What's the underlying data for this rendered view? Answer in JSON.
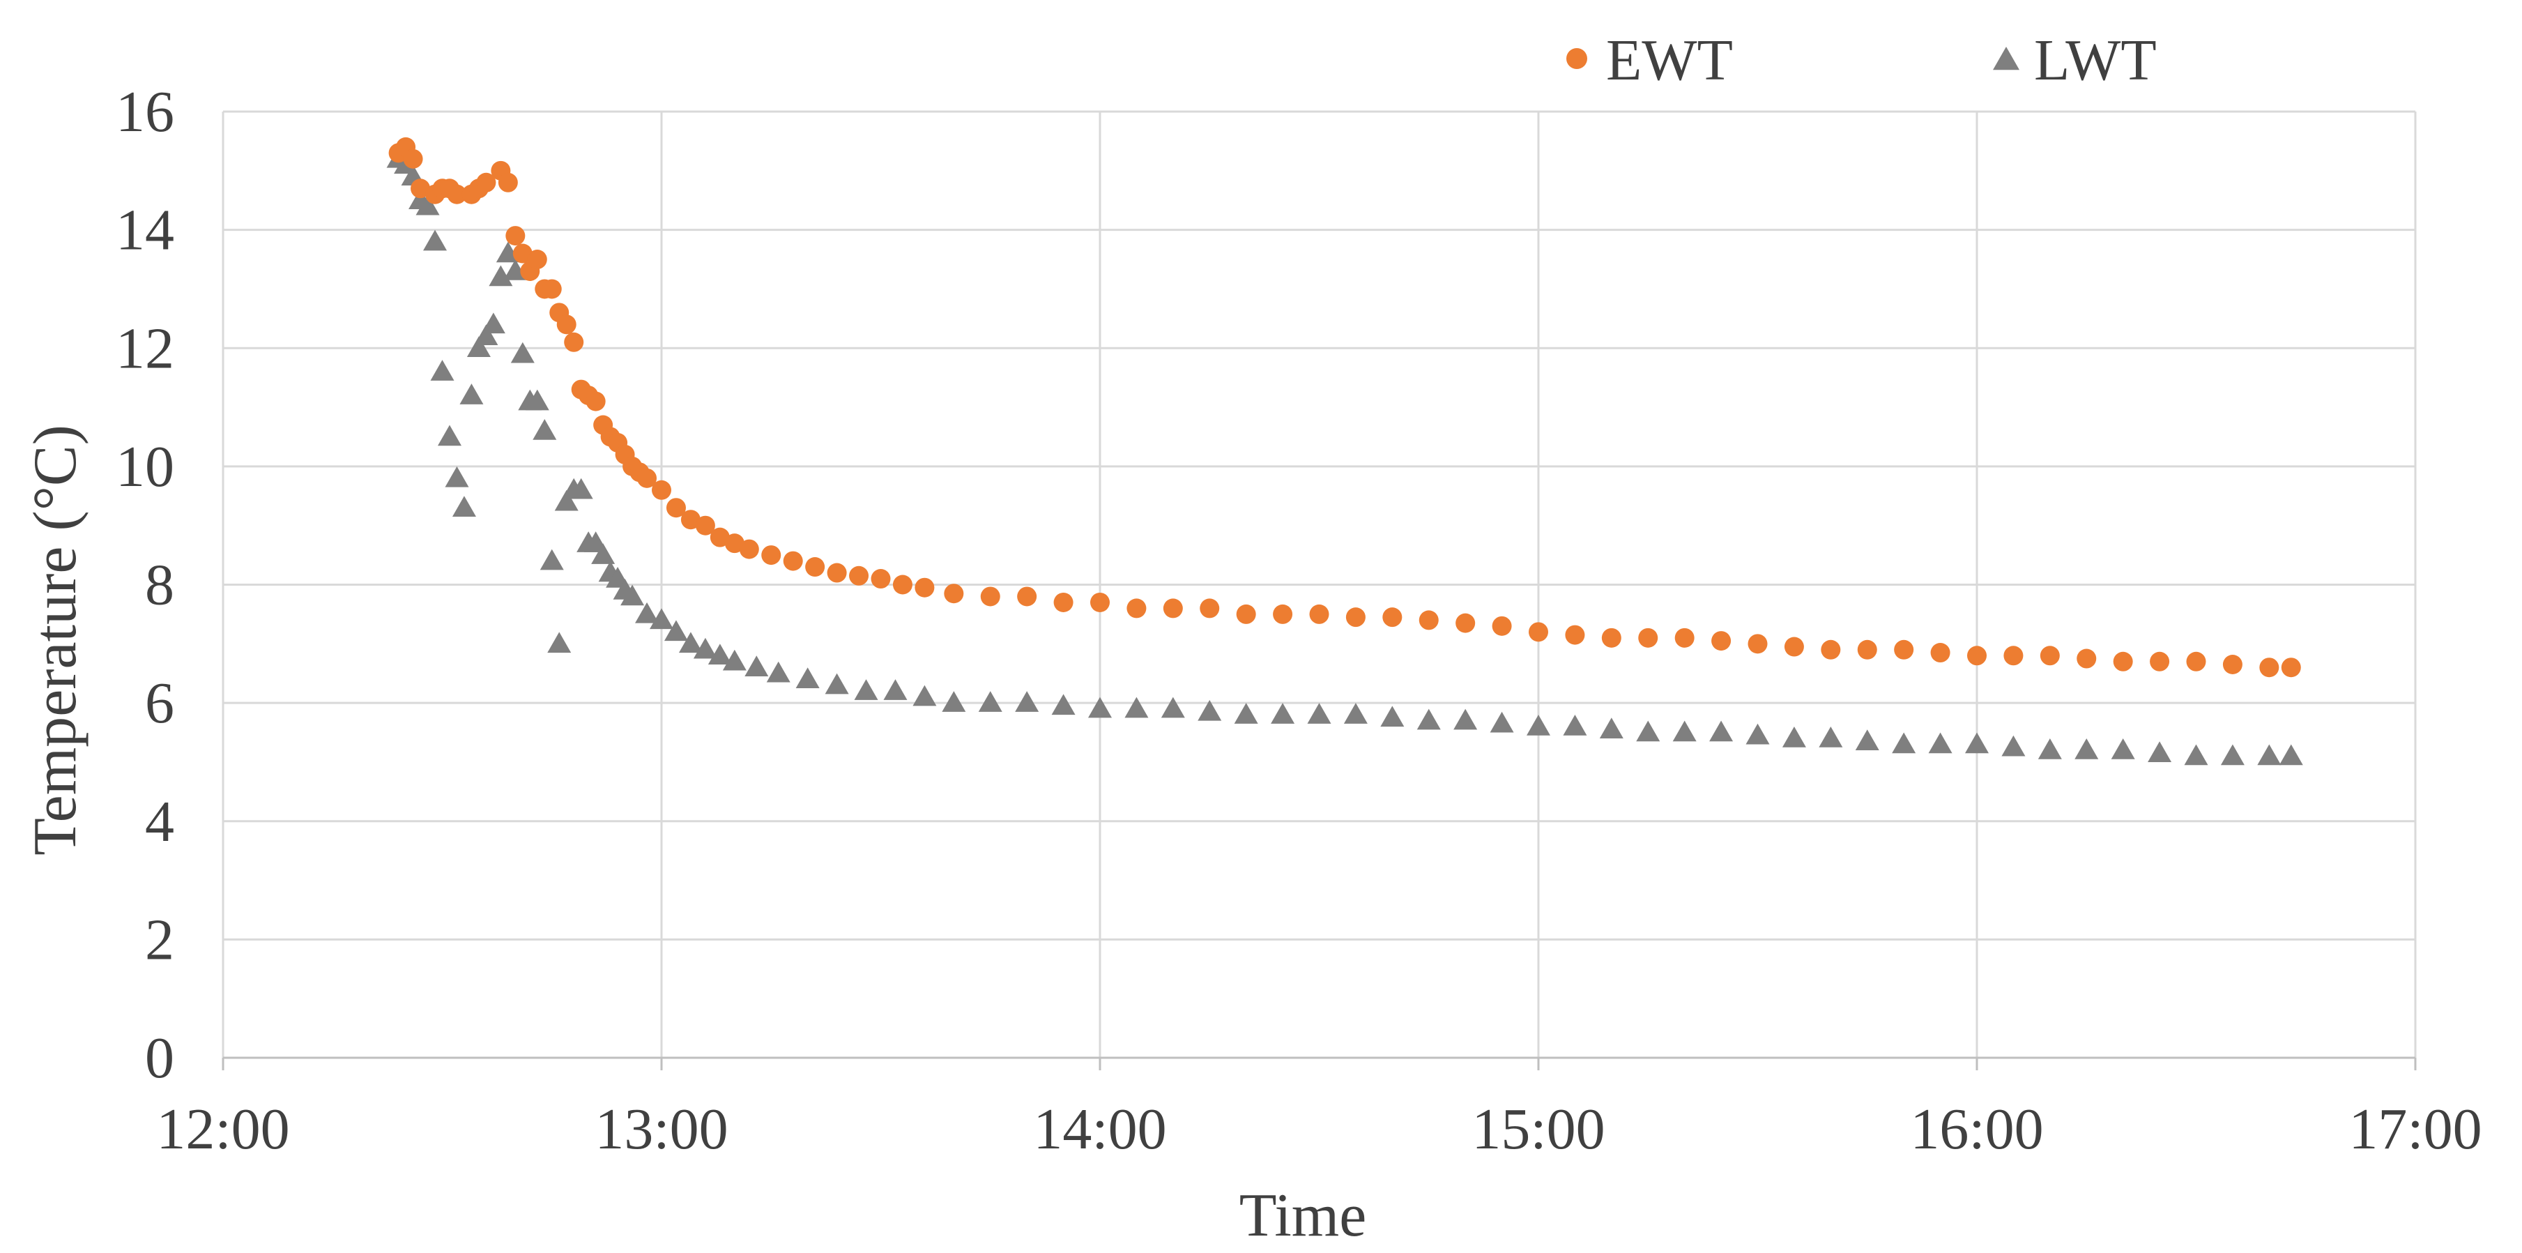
{
  "chart_data": {
    "type": "scatter",
    "xlabel": "Time",
    "ylabel": "Temperature (°C)",
    "x_unit": "clock time (HH:MM)",
    "xlim": [
      "12:00",
      "17:00"
    ],
    "xticks": [
      "12:00",
      "13:00",
      "14:00",
      "15:00",
      "16:00",
      "17:00"
    ],
    "ylim": [
      0,
      16
    ],
    "yticks": [
      0,
      2,
      4,
      6,
      8,
      10,
      12,
      14,
      16
    ],
    "grid": true,
    "legend_position": "top-right",
    "series": [
      {
        "name": "EWT",
        "color": "#ED7D31",
        "marker": "circle",
        "points": [
          [
            "12:24",
            15.3
          ],
          [
            "12:25",
            15.4
          ],
          [
            "12:26",
            15.2
          ],
          [
            "12:27",
            14.7
          ],
          [
            "12:29",
            14.6
          ],
          [
            "12:30",
            14.7
          ],
          [
            "12:31",
            14.7
          ],
          [
            "12:32",
            14.6
          ],
          [
            "12:34",
            14.6
          ],
          [
            "12:35",
            14.7
          ],
          [
            "12:36",
            14.8
          ],
          [
            "12:38",
            15.0
          ],
          [
            "12:39",
            14.8
          ],
          [
            "12:40",
            13.9
          ],
          [
            "12:41",
            13.6
          ],
          [
            "12:42",
            13.3
          ],
          [
            "12:43",
            13.5
          ],
          [
            "12:44",
            13.0
          ],
          [
            "12:45",
            13.0
          ],
          [
            "12:46",
            12.6
          ],
          [
            "12:47",
            12.4
          ],
          [
            "12:48",
            12.1
          ],
          [
            "12:49",
            11.3
          ],
          [
            "12:50",
            11.2
          ],
          [
            "12:51",
            11.1
          ],
          [
            "12:52",
            10.7
          ],
          [
            "12:53",
            10.5
          ],
          [
            "12:54",
            10.4
          ],
          [
            "12:55",
            10.2
          ],
          [
            "12:56",
            10.0
          ],
          [
            "12:57",
            9.9
          ],
          [
            "12:58",
            9.8
          ],
          [
            "13:00",
            9.6
          ],
          [
            "13:02",
            9.3
          ],
          [
            "13:04",
            9.1
          ],
          [
            "13:06",
            9.0
          ],
          [
            "13:08",
            8.8
          ],
          [
            "13:10",
            8.7
          ],
          [
            "13:12",
            8.6
          ],
          [
            "13:15",
            8.5
          ],
          [
            "13:18",
            8.4
          ],
          [
            "13:21",
            8.3
          ],
          [
            "13:24",
            8.2
          ],
          [
            "13:27",
            8.15
          ],
          [
            "13:30",
            8.1
          ],
          [
            "13:33",
            8.0
          ],
          [
            "13:36",
            7.95
          ],
          [
            "13:40",
            7.85
          ],
          [
            "13:45",
            7.8
          ],
          [
            "13:50",
            7.8
          ],
          [
            "13:55",
            7.7
          ],
          [
            "14:00",
            7.7
          ],
          [
            "14:05",
            7.6
          ],
          [
            "14:10",
            7.6
          ],
          [
            "14:15",
            7.6
          ],
          [
            "14:20",
            7.5
          ],
          [
            "14:25",
            7.5
          ],
          [
            "14:30",
            7.5
          ],
          [
            "14:35",
            7.45
          ],
          [
            "14:40",
            7.45
          ],
          [
            "14:45",
            7.4
          ],
          [
            "14:50",
            7.35
          ],
          [
            "14:55",
            7.3
          ],
          [
            "15:00",
            7.2
          ],
          [
            "15:05",
            7.15
          ],
          [
            "15:10",
            7.1
          ],
          [
            "15:15",
            7.1
          ],
          [
            "15:20",
            7.1
          ],
          [
            "15:25",
            7.05
          ],
          [
            "15:30",
            7.0
          ],
          [
            "15:35",
            6.95
          ],
          [
            "15:40",
            6.9
          ],
          [
            "15:45",
            6.9
          ],
          [
            "15:50",
            6.9
          ],
          [
            "15:55",
            6.85
          ],
          [
            "16:00",
            6.8
          ],
          [
            "16:05",
            6.8
          ],
          [
            "16:10",
            6.8
          ],
          [
            "16:15",
            6.75
          ],
          [
            "16:20",
            6.7
          ],
          [
            "16:25",
            6.7
          ],
          [
            "16:30",
            6.7
          ],
          [
            "16:35",
            6.65
          ],
          [
            "16:40",
            6.6
          ],
          [
            "16:43",
            6.6
          ]
        ]
      },
      {
        "name": "LWT",
        "color": "#7F7F7F",
        "marker": "triangle",
        "points": [
          [
            "12:24",
            15.2
          ],
          [
            "12:25",
            15.1
          ],
          [
            "12:26",
            14.9
          ],
          [
            "12:27",
            14.5
          ],
          [
            "12:28",
            14.4
          ],
          [
            "12:29",
            13.8
          ],
          [
            "12:30",
            11.6
          ],
          [
            "12:31",
            10.5
          ],
          [
            "12:32",
            9.8
          ],
          [
            "12:33",
            9.3
          ],
          [
            "12:34",
            11.2
          ],
          [
            "12:35",
            12.0
          ],
          [
            "12:36",
            12.2
          ],
          [
            "12:37",
            12.4
          ],
          [
            "12:38",
            13.2
          ],
          [
            "12:39",
            13.6
          ],
          [
            "12:40",
            13.3
          ],
          [
            "12:41",
            11.9
          ],
          [
            "12:42",
            11.1
          ],
          [
            "12:43",
            11.1
          ],
          [
            "12:44",
            10.6
          ],
          [
            "12:45",
            8.4
          ],
          [
            "12:46",
            7.0
          ],
          [
            "12:47",
            9.4
          ],
          [
            "12:48",
            9.6
          ],
          [
            "12:49",
            9.6
          ],
          [
            "12:50",
            8.7
          ],
          [
            "12:51",
            8.7
          ],
          [
            "12:52",
            8.5
          ],
          [
            "12:53",
            8.2
          ],
          [
            "12:54",
            8.1
          ],
          [
            "12:55",
            7.9
          ],
          [
            "12:56",
            7.8
          ],
          [
            "12:58",
            7.5
          ],
          [
            "13:00",
            7.4
          ],
          [
            "13:02",
            7.2
          ],
          [
            "13:04",
            7.0
          ],
          [
            "13:06",
            6.9
          ],
          [
            "13:08",
            6.8
          ],
          [
            "13:10",
            6.7
          ],
          [
            "13:13",
            6.6
          ],
          [
            "13:16",
            6.5
          ],
          [
            "13:20",
            6.4
          ],
          [
            "13:24",
            6.3
          ],
          [
            "13:28",
            6.2
          ],
          [
            "13:32",
            6.2
          ],
          [
            "13:36",
            6.1
          ],
          [
            "13:40",
            6.0
          ],
          [
            "13:45",
            6.0
          ],
          [
            "13:50",
            6.0
          ],
          [
            "13:55",
            5.95
          ],
          [
            "14:00",
            5.9
          ],
          [
            "14:05",
            5.9
          ],
          [
            "14:10",
            5.9
          ],
          [
            "14:15",
            5.85
          ],
          [
            "14:20",
            5.8
          ],
          [
            "14:25",
            5.8
          ],
          [
            "14:30",
            5.8
          ],
          [
            "14:35",
            5.8
          ],
          [
            "14:40",
            5.75
          ],
          [
            "14:45",
            5.7
          ],
          [
            "14:50",
            5.7
          ],
          [
            "14:55",
            5.65
          ],
          [
            "15:00",
            5.6
          ],
          [
            "15:05",
            5.6
          ],
          [
            "15:10",
            5.55
          ],
          [
            "15:15",
            5.5
          ],
          [
            "15:20",
            5.5
          ],
          [
            "15:25",
            5.5
          ],
          [
            "15:30",
            5.45
          ],
          [
            "15:35",
            5.4
          ],
          [
            "15:40",
            5.4
          ],
          [
            "15:45",
            5.35
          ],
          [
            "15:50",
            5.3
          ],
          [
            "15:55",
            5.3
          ],
          [
            "16:00",
            5.3
          ],
          [
            "16:05",
            5.25
          ],
          [
            "16:10",
            5.2
          ],
          [
            "16:15",
            5.2
          ],
          [
            "16:20",
            5.2
          ],
          [
            "16:25",
            5.15
          ],
          [
            "16:30",
            5.1
          ],
          [
            "16:35",
            5.1
          ],
          [
            "16:40",
            5.1
          ],
          [
            "16:43",
            5.1
          ]
        ]
      }
    ]
  }
}
